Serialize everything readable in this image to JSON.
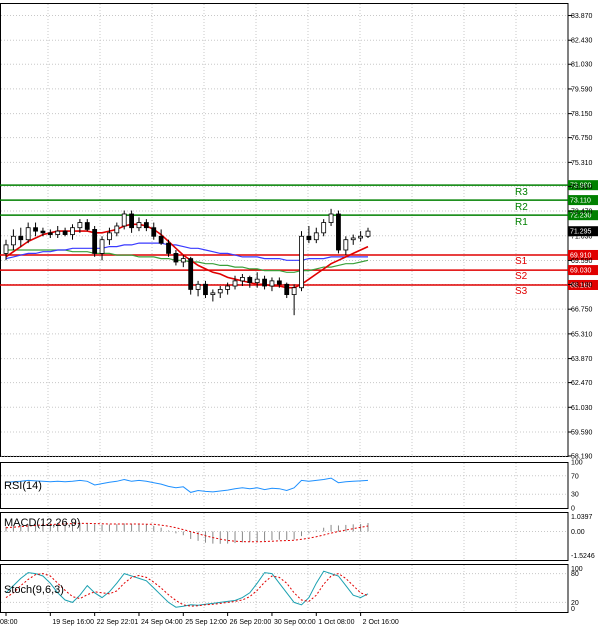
{
  "colors": {
    "grid": "#c8c8c8",
    "frame": "#000000",
    "candle": "#000000",
    "resistance": "#008000",
    "support": "#e00000",
    "ma_red": "#e00000",
    "ma_blue": "#3a3aff",
    "ma_green": "#3aa03a",
    "rsi": "#1e90ff",
    "macd_hist": "#888888",
    "macd_signal": "#e00000",
    "stoch_main": "#1aa0b0",
    "stoch_signal": "#e00000"
  },
  "chart_data": {
    "type": "candlestick",
    "price_ticks": [
      "83.870",
      "82.430",
      "81.030",
      "79.590",
      "78.150",
      "76.750",
      "75.310",
      "73.910",
      "72.470",
      "71.030",
      "69.590",
      "68.190",
      "66.750",
      "65.310",
      "63.870",
      "62.470",
      "61.030",
      "59.590",
      "58.190"
    ],
    "price_range": [
      58.19,
      84.6
    ],
    "current_price": "71.295",
    "levels": [
      {
        "name": "R3",
        "value": 73.98,
        "label": "73.980",
        "kind": "resistance"
      },
      {
        "name": "R2",
        "value": 73.11,
        "label": "73.110",
        "kind": "resistance"
      },
      {
        "name": "R1",
        "value": 72.23,
        "label": "72.230",
        "kind": "resistance"
      },
      {
        "name": "S1",
        "value": 69.91,
        "label": "69.910",
        "kind": "support"
      },
      {
        "name": "S2",
        "value": 69.03,
        "label": "69.030",
        "kind": "support"
      },
      {
        "name": "S3",
        "value": 68.16,
        "label": "68.160",
        "kind": "support"
      }
    ],
    "x_labels": [
      "08:00",
      "19 Sep 16:00",
      "22 Sep 22:01",
      "24 Sep 04:00",
      "25 Sep 12:00",
      "26 Sep 20:00",
      "30 Sep 00:00",
      "1 Oct 08:00",
      "2 Oct 16:00"
    ],
    "x_label_index": [
      0,
      6,
      12,
      18,
      24,
      30,
      36,
      42,
      48
    ],
    "candles": [
      {
        "o": 70.0,
        "h": 70.8,
        "l": 69.6,
        "c": 70.5
      },
      {
        "o": 70.5,
        "h": 71.4,
        "l": 70.2,
        "c": 71.0
      },
      {
        "o": 71.0,
        "h": 71.5,
        "l": 70.4,
        "c": 70.8
      },
      {
        "o": 70.8,
        "h": 71.8,
        "l": 70.6,
        "c": 71.5
      },
      {
        "o": 71.5,
        "h": 71.8,
        "l": 71.0,
        "c": 71.3
      },
      {
        "o": 71.3,
        "h": 71.5,
        "l": 71.0,
        "c": 71.2
      },
      {
        "o": 71.2,
        "h": 71.4,
        "l": 70.9,
        "c": 71.1
      },
      {
        "o": 71.1,
        "h": 71.6,
        "l": 70.9,
        "c": 71.3
      },
      {
        "o": 71.3,
        "h": 71.5,
        "l": 71.0,
        "c": 71.1
      },
      {
        "o": 71.1,
        "h": 71.7,
        "l": 70.8,
        "c": 71.5
      },
      {
        "o": 71.5,
        "h": 72.0,
        "l": 71.2,
        "c": 71.8
      },
      {
        "o": 71.8,
        "h": 72.0,
        "l": 71.3,
        "c": 71.4
      },
      {
        "o": 71.4,
        "h": 71.6,
        "l": 69.8,
        "c": 70.0
      },
      {
        "o": 70.0,
        "h": 71.0,
        "l": 69.6,
        "c": 70.8
      },
      {
        "o": 70.8,
        "h": 71.5,
        "l": 70.5,
        "c": 71.2
      },
      {
        "o": 71.2,
        "h": 71.8,
        "l": 71.0,
        "c": 71.6
      },
      {
        "o": 71.6,
        "h": 72.5,
        "l": 71.4,
        "c": 72.3
      },
      {
        "o": 72.3,
        "h": 72.5,
        "l": 71.2,
        "c": 71.5
      },
      {
        "o": 71.5,
        "h": 72.1,
        "l": 71.3,
        "c": 71.8
      },
      {
        "o": 71.8,
        "h": 72.0,
        "l": 71.3,
        "c": 71.5
      },
      {
        "o": 71.5,
        "h": 71.8,
        "l": 70.8,
        "c": 71.0
      },
      {
        "o": 71.0,
        "h": 71.4,
        "l": 70.5,
        "c": 70.6
      },
      {
        "o": 70.6,
        "h": 70.8,
        "l": 69.8,
        "c": 70.0
      },
      {
        "o": 70.0,
        "h": 70.2,
        "l": 69.3,
        "c": 69.5
      },
      {
        "o": 69.5,
        "h": 69.9,
        "l": 69.2,
        "c": 69.7
      },
      {
        "o": 69.7,
        "h": 69.8,
        "l": 67.6,
        "c": 67.9
      },
      {
        "o": 67.9,
        "h": 68.4,
        "l": 67.5,
        "c": 68.2
      },
      {
        "o": 68.2,
        "h": 68.4,
        "l": 67.4,
        "c": 67.6
      },
      {
        "o": 67.6,
        "h": 67.9,
        "l": 67.2,
        "c": 67.7
      },
      {
        "o": 67.7,
        "h": 68.1,
        "l": 67.4,
        "c": 67.9
      },
      {
        "o": 67.9,
        "h": 68.3,
        "l": 67.6,
        "c": 68.1
      },
      {
        "o": 68.1,
        "h": 68.7,
        "l": 67.9,
        "c": 68.4
      },
      {
        "o": 68.4,
        "h": 68.8,
        "l": 68.1,
        "c": 68.6
      },
      {
        "o": 68.6,
        "h": 68.7,
        "l": 68.0,
        "c": 68.3
      },
      {
        "o": 68.3,
        "h": 68.9,
        "l": 68.0,
        "c": 68.5
      },
      {
        "o": 68.5,
        "h": 68.7,
        "l": 67.9,
        "c": 68.1
      },
      {
        "o": 68.1,
        "h": 68.6,
        "l": 67.8,
        "c": 68.4
      },
      {
        "o": 68.4,
        "h": 68.6,
        "l": 68.0,
        "c": 68.2
      },
      {
        "o": 68.2,
        "h": 68.3,
        "l": 67.4,
        "c": 67.6
      },
      {
        "o": 67.6,
        "h": 68.2,
        "l": 66.4,
        "c": 68.0
      },
      {
        "o": 68.0,
        "h": 71.3,
        "l": 67.8,
        "c": 71.0
      },
      {
        "o": 71.0,
        "h": 71.6,
        "l": 70.6,
        "c": 70.8
      },
      {
        "o": 70.8,
        "h": 71.5,
        "l": 70.6,
        "c": 71.2
      },
      {
        "o": 71.2,
        "h": 72.0,
        "l": 71.0,
        "c": 71.8
      },
      {
        "o": 71.8,
        "h": 72.6,
        "l": 71.6,
        "c": 72.3
      },
      {
        "o": 72.3,
        "h": 72.5,
        "l": 70.0,
        "c": 70.2
      },
      {
        "o": 70.2,
        "h": 71.0,
        "l": 69.9,
        "c": 70.8
      },
      {
        "o": 70.8,
        "h": 71.1,
        "l": 70.5,
        "c": 70.9
      },
      {
        "o": 70.9,
        "h": 71.3,
        "l": 70.7,
        "c": 71.0
      },
      {
        "o": 71.0,
        "h": 71.5,
        "l": 70.9,
        "c": 71.3
      }
    ],
    "ma_red": [
      69.8,
      70.1,
      70.4,
      70.7,
      70.9,
      71.1,
      71.2,
      71.3,
      71.3,
      71.3,
      71.3,
      71.3,
      71.2,
      71.2,
      71.3,
      71.4,
      71.6,
      71.7,
      71.7,
      71.6,
      71.4,
      71.1,
      70.7,
      70.3,
      69.9,
      69.6,
      69.3,
      69.1,
      68.9,
      68.8,
      68.6,
      68.5,
      68.4,
      68.3,
      68.2,
      68.2,
      68.1,
      68.1,
      68.0,
      68.0,
      68.2,
      68.5,
      68.8,
      69.1,
      69.4,
      69.6,
      69.8,
      70.0,
      70.2,
      70.4
    ],
    "ma_blue": [
      69.7,
      69.8,
      69.9,
      70.0,
      70.0,
      70.1,
      70.1,
      70.2,
      70.2,
      70.3,
      70.3,
      70.3,
      70.3,
      70.3,
      70.4,
      70.4,
      70.5,
      70.5,
      70.6,
      70.6,
      70.6,
      70.6,
      70.5,
      70.5,
      70.4,
      70.3,
      70.3,
      70.2,
      70.1,
      70.0,
      70.0,
      69.9,
      69.8,
      69.8,
      69.8,
      69.7,
      69.7,
      69.7,
      69.6,
      69.6,
      69.6,
      69.7,
      69.7,
      69.7,
      69.8,
      69.8,
      69.8,
      69.8,
      69.8,
      69.8
    ],
    "ma_green": [
      70.2,
      70.2,
      70.2,
      70.2,
      70.2,
      70.2,
      70.2,
      70.2,
      70.2,
      70.1,
      70.1,
      70.1,
      70.0,
      70.0,
      70.0,
      69.9,
      69.9,
      69.9,
      69.8,
      69.8,
      69.8,
      69.7,
      69.7,
      69.6,
      69.6,
      69.5,
      69.5,
      69.4,
      69.4,
      69.3,
      69.3,
      69.2,
      69.2,
      69.1,
      69.1,
      69.0,
      69.0,
      69.0,
      68.9,
      68.9,
      69.0,
      69.0,
      69.1,
      69.2,
      69.2,
      69.3,
      69.4,
      69.4,
      69.5,
      69.6
    ],
    "rsi": {
      "label": "RSI(14)",
      "ticks": [
        "100",
        "70",
        "30",
        "0"
      ],
      "range": [
        0,
        100
      ],
      "values": [
        56,
        57,
        58,
        60,
        59,
        58,
        57,
        58,
        57,
        58,
        60,
        58,
        50,
        53,
        56,
        58,
        62,
        58,
        60,
        58,
        55,
        52,
        47,
        44,
        46,
        34,
        38,
        36,
        35,
        37,
        39,
        42,
        44,
        42,
        44,
        40,
        43,
        42,
        38,
        44,
        60,
        58,
        60,
        62,
        65,
        55,
        57,
        58,
        59,
        60
      ]
    },
    "macd": {
      "label": "MACD(12,26,9)",
      "ticks": [
        "1.0397",
        "0.00",
        "-1.5246"
      ],
      "range": [
        -1.5246,
        1.0397
      ],
      "hist": [
        0.25,
        0.3,
        0.35,
        0.38,
        0.42,
        0.44,
        0.45,
        0.46,
        0.46,
        0.45,
        0.46,
        0.45,
        0.38,
        0.36,
        0.37,
        0.39,
        0.43,
        0.4,
        0.4,
        0.38,
        0.3,
        0.2,
        0.05,
        -0.1,
        -0.2,
        -0.4,
        -0.5,
        -0.6,
        -0.65,
        -0.66,
        -0.65,
        -0.62,
        -0.58,
        -0.55,
        -0.52,
        -0.5,
        -0.46,
        -0.44,
        -0.45,
        -0.43,
        -0.25,
        -0.1,
        0.05,
        0.2,
        0.35,
        0.32,
        0.35,
        0.38,
        0.4,
        0.45
      ],
      "signal": [
        0.2,
        0.23,
        0.26,
        0.29,
        0.32,
        0.35,
        0.37,
        0.39,
        0.41,
        0.42,
        0.43,
        0.43,
        0.42,
        0.41,
        0.4,
        0.4,
        0.4,
        0.4,
        0.4,
        0.39,
        0.38,
        0.34,
        0.28,
        0.2,
        0.1,
        -0.01,
        -0.12,
        -0.23,
        -0.33,
        -0.41,
        -0.48,
        -0.52,
        -0.54,
        -0.55,
        -0.55,
        -0.54,
        -0.52,
        -0.5,
        -0.49,
        -0.47,
        -0.42,
        -0.36,
        -0.28,
        -0.19,
        -0.09,
        0.0,
        0.08,
        0.15,
        0.22,
        0.29
      ]
    },
    "stoch": {
      "label": "Stoch(9,6,3)",
      "ticks": [
        "100",
        "80",
        "20",
        "0"
      ],
      "range": [
        0,
        100
      ],
      "main": [
        40,
        55,
        70,
        82,
        80,
        75,
        60,
        40,
        25,
        20,
        35,
        55,
        40,
        30,
        42,
        60,
        80,
        75,
        70,
        65,
        50,
        35,
        20,
        10,
        12,
        15,
        14,
        16,
        18,
        20,
        22,
        24,
        30,
        40,
        60,
        82,
        80,
        60,
        40,
        20,
        15,
        30,
        60,
        85,
        80,
        75,
        55,
        35,
        30,
        38
      ],
      "signal": [
        30,
        40,
        55,
        68,
        78,
        80,
        75,
        60,
        45,
        32,
        28,
        36,
        42,
        40,
        38,
        44,
        60,
        72,
        76,
        72,
        62,
        50,
        36,
        24,
        15,
        12,
        13,
        15,
        16,
        18,
        20,
        22,
        25,
        32,
        45,
        62,
        75,
        72,
        60,
        40,
        25,
        22,
        35,
        58,
        75,
        80,
        70,
        55,
        40,
        34
      ]
    }
  }
}
